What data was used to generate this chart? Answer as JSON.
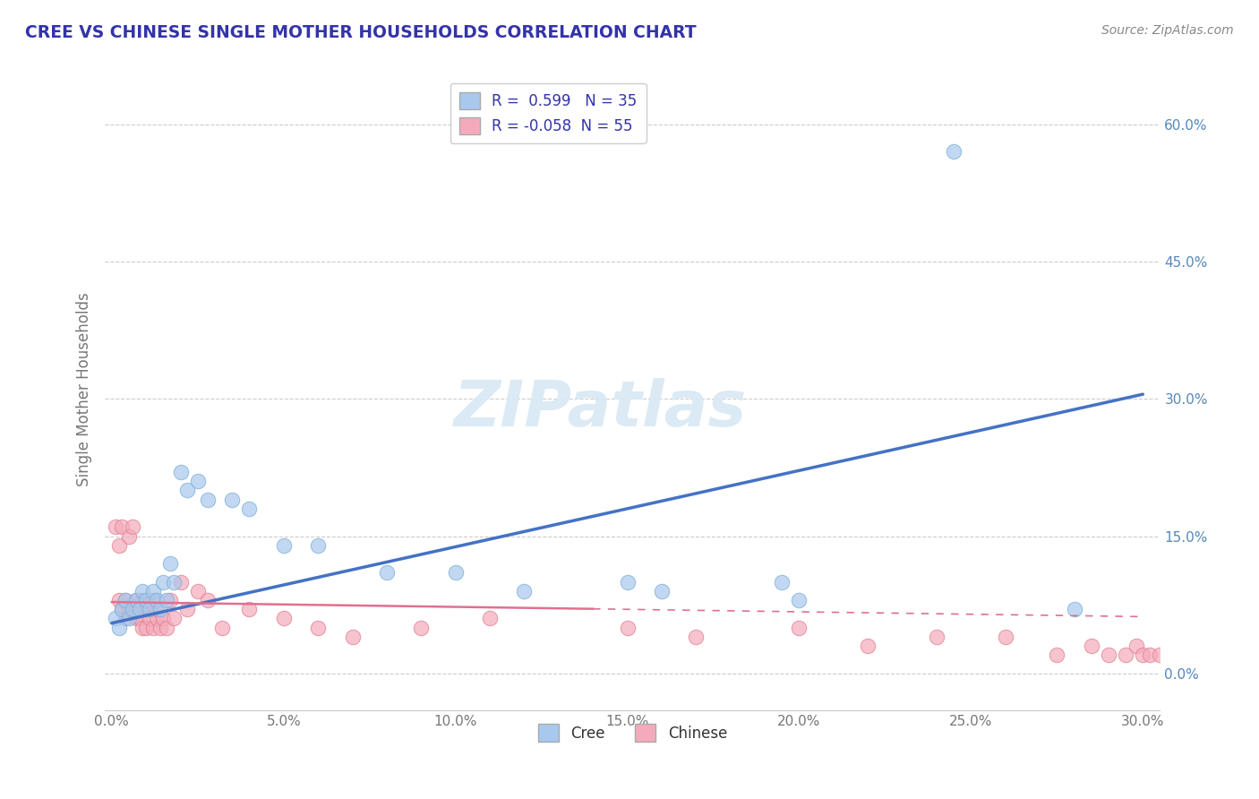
{
  "title": "CREE VS CHINESE SINGLE MOTHER HOUSEHOLDS CORRELATION CHART",
  "source_text": "Source: ZipAtlas.com",
  "ylabel": "Single Mother Households",
  "xlim": [
    -0.002,
    0.305
  ],
  "ylim": [
    -0.04,
    0.66
  ],
  "xtick_vals": [
    0.0,
    0.05,
    0.1,
    0.15,
    0.2,
    0.25,
    0.3
  ],
  "xtick_labels": [
    "0.0%",
    "5.0%",
    "10.0%",
    "15.0%",
    "20.0%",
    "25.0%",
    "30.0%"
  ],
  "ytick_vals": [
    0.0,
    0.15,
    0.3,
    0.45,
    0.6
  ],
  "ytick_labels": [
    "0.0%",
    "15.0%",
    "30.0%",
    "45.0%",
    "60.0%"
  ],
  "cree_R": "0.599",
  "cree_N": "35",
  "chinese_R": "-0.058",
  "chinese_N": "55",
  "cree_color": "#A8C8ED",
  "cree_edge_color": "#7AAFD4",
  "cree_line_color": "#4472C4",
  "chinese_color": "#F4AABB",
  "chinese_edge_color": "#E08090",
  "chinese_line_color": "#E07090",
  "legend_label_cree": "Cree",
  "legend_label_chinese": "Chinese",
  "background_color": "#ffffff",
  "grid_color": "#cccccc",
  "title_color": "#3333AA",
  "source_color": "#888888",
  "label_color": "#5588BB",
  "watermark_color": "#D8E8F4",
  "cree_scatter_x": [
    0.001,
    0.002,
    0.003,
    0.004,
    0.005,
    0.006,
    0.007,
    0.008,
    0.009,
    0.01,
    0.011,
    0.012,
    0.013,
    0.014,
    0.015,
    0.016,
    0.017,
    0.018,
    0.02,
    0.022,
    0.025,
    0.028,
    0.035,
    0.04,
    0.05,
    0.06,
    0.08,
    0.1,
    0.12,
    0.15,
    0.16,
    0.195,
    0.2,
    0.245,
    0.28
  ],
  "cree_scatter_y": [
    0.06,
    0.05,
    0.07,
    0.08,
    0.06,
    0.07,
    0.08,
    0.07,
    0.09,
    0.08,
    0.07,
    0.09,
    0.08,
    0.07,
    0.1,
    0.08,
    0.12,
    0.1,
    0.22,
    0.2,
    0.21,
    0.19,
    0.19,
    0.18,
    0.14,
    0.14,
    0.11,
    0.11,
    0.09,
    0.1,
    0.09,
    0.1,
    0.08,
    0.57,
    0.07
  ],
  "chinese_scatter_x": [
    0.001,
    0.002,
    0.002,
    0.003,
    0.003,
    0.004,
    0.004,
    0.005,
    0.005,
    0.006,
    0.006,
    0.007,
    0.007,
    0.008,
    0.008,
    0.009,
    0.009,
    0.01,
    0.01,
    0.011,
    0.011,
    0.012,
    0.012,
    0.013,
    0.013,
    0.014,
    0.015,
    0.016,
    0.017,
    0.018,
    0.02,
    0.022,
    0.025,
    0.028,
    0.032,
    0.04,
    0.05,
    0.06,
    0.07,
    0.09,
    0.11,
    0.15,
    0.17,
    0.2,
    0.22,
    0.24,
    0.26,
    0.275,
    0.285,
    0.29,
    0.295,
    0.298,
    0.3,
    0.302,
    0.305
  ],
  "chinese_scatter_y": [
    0.16,
    0.08,
    0.14,
    0.07,
    0.16,
    0.08,
    0.06,
    0.07,
    0.15,
    0.07,
    0.16,
    0.06,
    0.08,
    0.07,
    0.06,
    0.05,
    0.08,
    0.07,
    0.05,
    0.07,
    0.06,
    0.05,
    0.08,
    0.06,
    0.07,
    0.05,
    0.06,
    0.05,
    0.08,
    0.06,
    0.1,
    0.07,
    0.09,
    0.08,
    0.05,
    0.07,
    0.06,
    0.05,
    0.04,
    0.05,
    0.06,
    0.05,
    0.04,
    0.05,
    0.03,
    0.04,
    0.04,
    0.02,
    0.03,
    0.02,
    0.02,
    0.03,
    0.02,
    0.02,
    0.02
  ],
  "cree_line_x0": 0.0,
  "cree_line_y0": 0.055,
  "cree_line_x1": 0.3,
  "cree_line_y1": 0.305,
  "chinese_line_x0": 0.0,
  "chinese_line_y0": 0.078,
  "chinese_line_x1": 0.3,
  "chinese_line_y1": 0.062
}
